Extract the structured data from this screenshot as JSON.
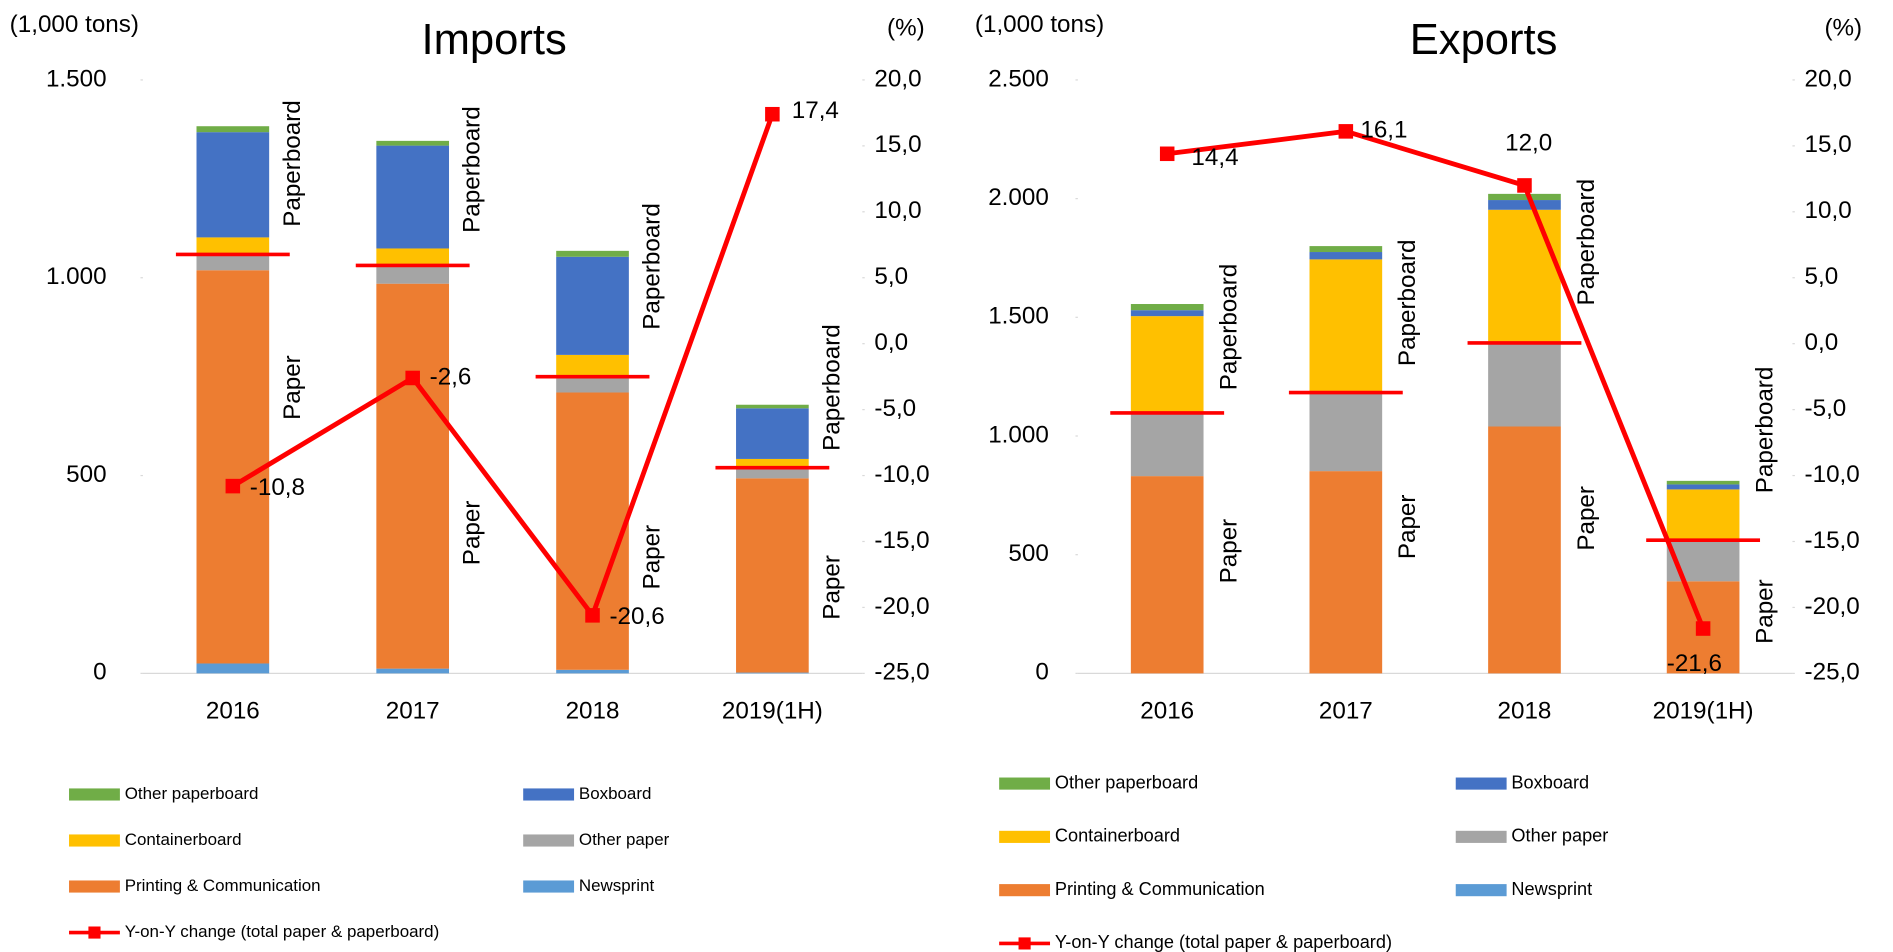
{
  "chart_data": [
    {
      "type": "bar",
      "title": "Imports",
      "y_label": "(1,000 tons)",
      "y2_label": "(%)",
      "paper_label": "Paper",
      "paperboard_label": "Paperboard",
      "categories": [
        "2016",
        "2017",
        "2018",
        "2019(1H)"
      ],
      "series": [
        {
          "name": "Newsprint",
          "color": "#5b9bd5",
          "values": [
            25,
            12,
            9,
            2
          ]
        },
        {
          "name": "Printing & Communication",
          "color": "#ed7d31",
          "values": [
            994,
            973,
            701,
            491
          ]
        },
        {
          "name": "Other paper",
          "color": "#a5a5a5",
          "values": [
            40,
            46,
            40,
            27
          ]
        },
        {
          "name": "Containerboard",
          "color": "#ffc000",
          "values": [
            43,
            43,
            55,
            22
          ]
        },
        {
          "name": "Boxboard",
          "color": "#4472c4",
          "values": [
            266,
            260,
            248,
            128
          ]
        },
        {
          "name": "Other paperboard",
          "color": "#70ad47",
          "values": [
            15,
            12,
            15,
            9
          ]
        },
        {
          "name": "Y-on-Y change (total paper & paperboard)",
          "type": "line",
          "axis": "y2",
          "color": "#ff0000",
          "values": [
            -10.8,
            -2.6,
            -20.6,
            17.4
          ],
          "value_labels": [
            "-10,8",
            "-2,6",
            "-20,6",
            "17,4"
          ],
          "value_label_colors": [
            "#ff0000",
            "#ff0000",
            "#ff0000",
            "#000000"
          ]
        }
      ],
      "ylim": [
        0,
        1500
      ],
      "yticks": [
        0,
        500,
        {
          "value": 1000,
          "label": "1.000"
        },
        {
          "value": 1500,
          "label": "1.500"
        }
      ],
      "y2lim": [
        -25,
        20
      ],
      "y2ticks": [
        {
          "value": 20,
          "label": "20,0"
        },
        {
          "value": 15,
          "label": "15,0"
        },
        {
          "value": 10,
          "label": "10,0"
        },
        {
          "value": 5,
          "label": "5,0"
        },
        {
          "value": 0,
          "label": "0,0"
        },
        {
          "value": -5,
          "label": "-5,0"
        },
        {
          "value": -10,
          "label": "-10,0"
        },
        {
          "value": -15,
          "label": "-15,0"
        },
        {
          "value": -20,
          "label": "-20,0"
        },
        {
          "value": -25,
          "label": "-25,0"
        }
      ]
    },
    {
      "type": "bar",
      "title": "Exports",
      "y_label": "(1,000 tons)",
      "y2_label": "(%)",
      "paper_label": "Paper",
      "paperboard_label": "Paperboard",
      "categories": [
        "2016",
        "2017",
        "2018",
        "2019(1H)"
      ],
      "series": [
        {
          "name": "Newsprint",
          "color": "#5b9bd5",
          "values": [
            0,
            0,
            0,
            0
          ]
        },
        {
          "name": "Printing & Communication",
          "color": "#ed7d31",
          "values": [
            831,
            852,
            1040,
            388
          ]
        },
        {
          "name": "Other paper",
          "color": "#a5a5a5",
          "values": [
            266,
            331,
            352,
            173
          ]
        },
        {
          "name": "Containerboard",
          "color": "#ffc000",
          "values": [
            408,
            561,
            561,
            214
          ]
        },
        {
          "name": "Boxboard",
          "color": "#4472c4",
          "values": [
            25,
            31,
            41,
            21
          ]
        },
        {
          "name": "Other paperboard",
          "color": "#70ad47",
          "values": [
            26,
            25,
            26,
            15
          ]
        },
        {
          "name": "Y-on-Y change (total paper & paperboard)",
          "type": "line",
          "axis": "y2",
          "color": "#ff0000",
          "values": [
            14.4,
            16.1,
            12.0,
            -21.6
          ],
          "value_labels": [
            "14,4",
            "16,1",
            "12,0",
            "-21,6"
          ],
          "value_label_colors": [
            "#000000",
            "#000000",
            "#000000",
            "#ff0000"
          ]
        }
      ],
      "ylim": [
        0,
        2500
      ],
      "yticks": [
        0,
        500,
        {
          "value": 1000,
          "label": "1.000"
        },
        {
          "value": 1500,
          "label": "1.500"
        },
        {
          "value": 2000,
          "label": "2.000"
        },
        {
          "value": 2500,
          "label": "2.500"
        }
      ],
      "y2lim": [
        -25,
        20
      ],
      "y2ticks": [
        {
          "value": 20,
          "label": "20,0"
        },
        {
          "value": 15,
          "label": "15,0"
        },
        {
          "value": 10,
          "label": "10,0"
        },
        {
          "value": 5,
          "label": "5,0"
        },
        {
          "value": 0,
          "label": "0,0"
        },
        {
          "value": -5,
          "label": "-5,0"
        },
        {
          "value": -10,
          "label": "-10,0"
        },
        {
          "value": -15,
          "label": "-15,0"
        },
        {
          "value": -20,
          "label": "-20,0"
        },
        {
          "value": -25,
          "label": "-25,0"
        }
      ]
    }
  ]
}
